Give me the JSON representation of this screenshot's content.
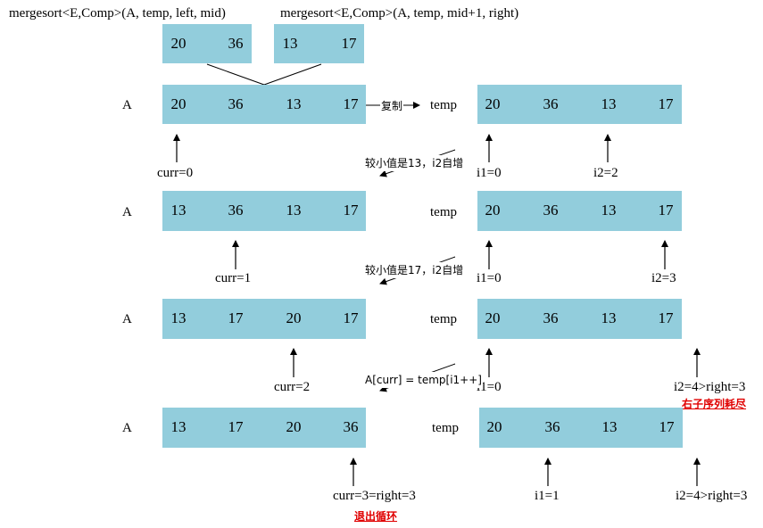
{
  "colors": {
    "cell_fill": "#92cddc",
    "warning_text": "#e00000"
  },
  "top": {
    "left_call": "mergesort<E,Comp>(A, temp, left, mid)",
    "right_call": "mergesort<E,Comp>(A, temp, mid+1, right)",
    "left_values": [
      "20",
      "36"
    ],
    "right_values": [
      "13",
      "17"
    ]
  },
  "copy_label": "复制",
  "rows": [
    {
      "a_label": "A",
      "a_values": [
        "20",
        "36",
        "13",
        "17"
      ],
      "temp_label": "temp",
      "temp_values": [
        "20",
        "36",
        "13",
        "17"
      ],
      "curr_label": "curr=0",
      "i1_label": "i1=0",
      "i2_label": "i2=2",
      "note": "较小值是13，i2自增"
    },
    {
      "a_label": "A",
      "a_values": [
        "13",
        "36",
        "13",
        "17"
      ],
      "temp_label": "temp",
      "temp_values": [
        "20",
        "36",
        "13",
        "17"
      ],
      "curr_label": "curr=1",
      "i1_label": "i1=0",
      "i2_label": "i2=3",
      "note": "较小值是17，i2自增"
    },
    {
      "a_label": "A",
      "a_values": [
        "13",
        "17",
        "20",
        "17"
      ],
      "temp_label": "temp",
      "temp_values": [
        "20",
        "36",
        "13",
        "17"
      ],
      "curr_label": "curr=2",
      "i1_label": "i1=0",
      "i2_label": "i2=4>right=3",
      "note": "A[curr] = temp[i1++]",
      "warning": "右子序列耗尽"
    },
    {
      "a_label": "A",
      "a_values": [
        "13",
        "17",
        "20",
        "36"
      ],
      "temp_label": "temp",
      "temp_values": [
        "20",
        "36",
        "13",
        "17"
      ],
      "curr_label": "curr=3=right=3",
      "i1_label": "i1=1",
      "i2_label": "i2=4>right=3",
      "warning": "退出循环"
    }
  ]
}
